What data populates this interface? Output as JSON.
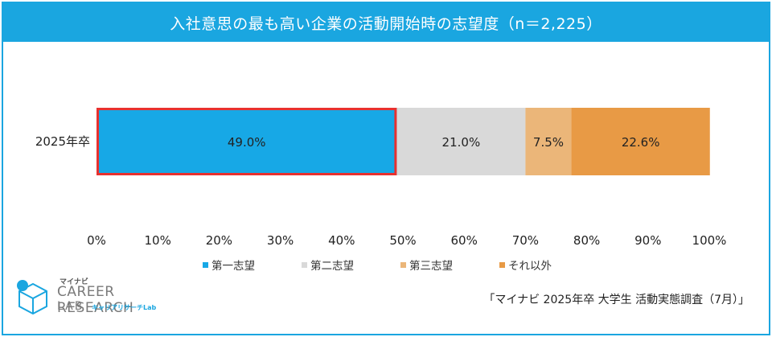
{
  "chart_data": {
    "type": "bar",
    "orientation": "horizontal",
    "stacked": true,
    "title": "入社意思の最も高い企業の活動開始時の志望度（n＝2,225）",
    "categories": [
      "2025年卒"
    ],
    "series": [
      {
        "name": "第一志望",
        "values": [
          49.0
        ],
        "label": "49.0%",
        "color": "#17a8e6",
        "highlighted": true
      },
      {
        "name": "第二志望",
        "values": [
          21.0
        ],
        "label": "21.0%",
        "color": "#d9d9d9"
      },
      {
        "name": "第三志望",
        "values": [
          7.5
        ],
        "label": "7.5%",
        "color": "#ebb679"
      },
      {
        "name": "それ以外",
        "values": [
          22.6
        ],
        "label": "22.6%",
        "color": "#e89a45"
      }
    ],
    "xlim": [
      0,
      100
    ],
    "xticks": [
      "0%",
      "10%",
      "20%",
      "30%",
      "40%",
      "50%",
      "60%",
      "70%",
      "80%",
      "90%",
      "100%"
    ],
    "grid": false,
    "legend_position": "bottom",
    "highlight_color": "#e8312f"
  },
  "source": "「マイナビ 2025年卒 大学生 活動実態調査（7月）」",
  "logo": {
    "brand_small": "マイナビ",
    "brand_main": "CAREER RESEARCH",
    "brand_lab": "LAB",
    "brand_sub": "キャリアリサーチLab"
  }
}
